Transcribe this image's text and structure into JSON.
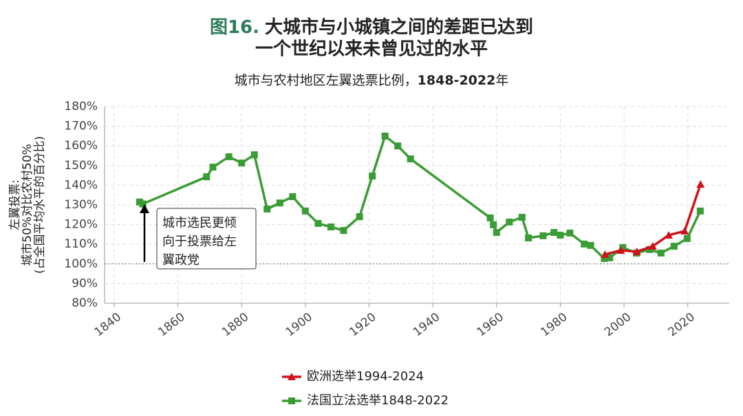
{
  "chart_data": {
    "type": "line",
    "figure_label": "图16.",
    "title_lines": [
      "大城市与小城镇之间的差距已达到",
      "一个世纪以来未曾见过的水平"
    ],
    "subtitle_parts": [
      "城市与农村地区左翼选票比例，",
      "1848-2022",
      "年"
    ],
    "ylabel_lines": [
      "左翼投票:",
      "城市50%对比农村50%",
      "(占全国平均水平的百分比)"
    ],
    "annotation_lines": [
      "城市选民更倾",
      "向于投票给左",
      "翼政党"
    ],
    "xlim": [
      1837,
      2033
    ],
    "ylim": [
      80,
      180
    ],
    "xticks": [
      1840,
      1860,
      1880,
      1900,
      1920,
      1940,
      1960,
      1980,
      2000,
      2020
    ],
    "yticks": [
      {
        "value": 80,
        "label": "80%"
      },
      {
        "value": 90,
        "label": "90%"
      },
      {
        "value": 100,
        "label": "100%"
      },
      {
        "value": 110,
        "label": "110%"
      },
      {
        "value": 120,
        "label": "120%"
      },
      {
        "value": 130,
        "label": "130%"
      },
      {
        "value": 140,
        "label": "140%"
      },
      {
        "value": 150,
        "label": "150%"
      },
      {
        "value": 160,
        "label": "160%"
      },
      {
        "value": 170,
        "label": "170%"
      },
      {
        "value": 180,
        "label": "180%"
      }
    ],
    "grid": true,
    "reference_line": 100,
    "legend_position": "bottom",
    "series": [
      {
        "name": "欧洲选举1994-2024",
        "color": "#d0121b",
        "marker": "triangle",
        "x": [
          1994,
          1999,
          2004,
          2009,
          2014,
          2019,
          2024
        ],
        "values": [
          104.8,
          106.9,
          106.2,
          109,
          114.6,
          116.7,
          140.5
        ]
      },
      {
        "name": "法国立法选举1848-2022",
        "color": "#3a9c34",
        "marker": "square",
        "x": [
          1848,
          1849,
          1869,
          1871,
          1876,
          1880,
          1884,
          1888,
          1892,
          1896,
          1900,
          1904,
          1908,
          1912,
          1917,
          1921,
          1925,
          1929,
          1933,
          1958,
          1959,
          1960,
          1964,
          1968,
          1970,
          1974.6,
          1978,
          1980,
          1983,
          1987.5,
          1989.5,
          1993.8,
          1995.5,
          1999.6,
          2003.9,
          2008,
          2011.6,
          2015.7,
          2019.8,
          2023.9
        ],
        "values": [
          131.5,
          130.5,
          144.3,
          149.2,
          154.5,
          151.3,
          155.5,
          127.9,
          131,
          134.2,
          126.9,
          120.6,
          118.8,
          117,
          124,
          144.7,
          165,
          160,
          153.4,
          123.4,
          119.9,
          116,
          121.3,
          123.7,
          113.2,
          114.3,
          116,
          114.6,
          115.7,
          110.1,
          109.4,
          102.7,
          103.1,
          108.3,
          105.5,
          107.3,
          105.5,
          109,
          112.9,
          126.9
        ]
      }
    ]
  }
}
